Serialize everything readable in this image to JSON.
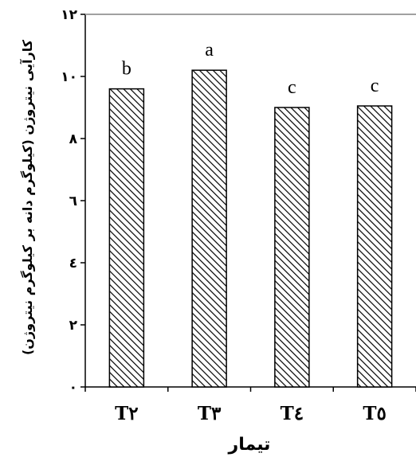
{
  "chart_data": {
    "type": "bar",
    "categories": [
      "T٢",
      "T٣",
      "T٤",
      "T٥"
    ],
    "values": [
      9.6,
      10.2,
      9.0,
      9.05
    ],
    "significance_letters": [
      "b",
      "a",
      "c",
      "c"
    ],
    "xlabel": "تیمار",
    "ylabel": "کارآیی نیتروژن (کیلوگرم دانه بر کیلوگرم نیتروژن)",
    "ylim": [
      0,
      12
    ],
    "yticks": [
      0,
      2,
      4,
      6,
      8,
      10,
      12
    ],
    "ytick_labels": [
      "٠",
      "٢",
      "٤",
      "٦",
      "٨",
      "١٠",
      "١٢"
    ],
    "grid": false,
    "bar_fill": "diagonal-hatch",
    "colors": {
      "bar_stroke": "#000000",
      "hatch": "#000000",
      "top_line": "#a0a0a0"
    }
  }
}
